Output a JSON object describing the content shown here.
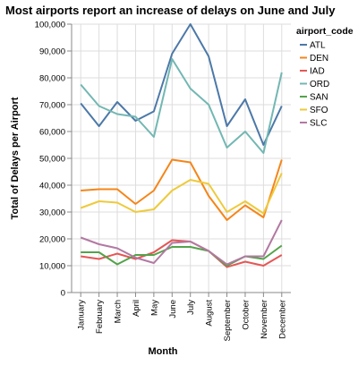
{
  "chart_data": {
    "type": "line",
    "title": "Most airports report an increase of delays on June and July",
    "xlabel": "Month",
    "ylabel": "Total of Delays per Airport",
    "categories": [
      "January",
      "February",
      "March",
      "April",
      "May",
      "June",
      "July",
      "August",
      "September",
      "October",
      "November",
      "December"
    ],
    "ylim": [
      0,
      100000
    ],
    "y_ticks": [
      0,
      10000,
      20000,
      30000,
      40000,
      50000,
      60000,
      70000,
      80000,
      90000,
      100000
    ],
    "y_tick_labels": [
      "0",
      "10,000",
      "20,000",
      "30,000",
      "40,000",
      "50,000",
      "60,000",
      "70,000",
      "80,000",
      "90,000",
      "100,000"
    ],
    "grid": true,
    "legend": {
      "title": "airport_code",
      "placement": "right"
    },
    "series": [
      {
        "name": "ATL",
        "color": "#4c78a8",
        "values": [
          70500,
          62000,
          71000,
          64000,
          67500,
          89000,
          100000,
          88000,
          62000,
          72000,
          55000,
          69500
        ]
      },
      {
        "name": "DEN",
        "color": "#f58518",
        "values": [
          38000,
          38500,
          38500,
          33000,
          38000,
          49500,
          48500,
          36000,
          27000,
          32500,
          28000,
          49500
        ]
      },
      {
        "name": "IAD",
        "color": "#e45756",
        "values": [
          13500,
          12500,
          14500,
          12500,
          15000,
          19500,
          19000,
          15500,
          9500,
          11500,
          10000,
          14000
        ]
      },
      {
        "name": "ORD",
        "color": "#72b7b2",
        "values": [
          77500,
          69500,
          66500,
          65500,
          58000,
          87000,
          76000,
          70000,
          54000,
          60000,
          52000,
          82000
        ]
      },
      {
        "name": "SAN",
        "color": "#54a24b",
        "values": [
          15000,
          15000,
          10500,
          14000,
          14000,
          17000,
          17000,
          15500,
          10000,
          13500,
          12500,
          17500
        ]
      },
      {
        "name": "SFO",
        "color": "#eeca3b",
        "values": [
          31500,
          34000,
          33500,
          30000,
          31000,
          38000,
          42000,
          40500,
          30000,
          34000,
          29500,
          44500
        ]
      },
      {
        "name": "SLC",
        "color": "#b279a2",
        "values": [
          20500,
          18000,
          16500,
          13000,
          11000,
          18500,
          19000,
          15500,
          10500,
          13500,
          13500,
          27000
        ]
      }
    ]
  }
}
